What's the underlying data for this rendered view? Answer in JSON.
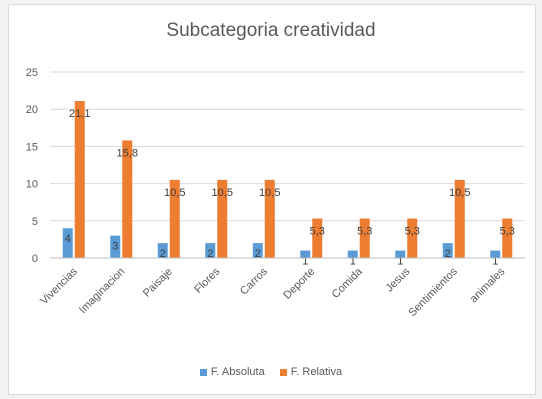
{
  "chart_data": {
    "type": "bar",
    "title": "Subcategoria creatividad",
    "categories": [
      "Vivencias",
      "Imaginacion",
      "Paisaje",
      "Flores",
      "Carros",
      "Deporte",
      "Comida",
      "Jesus",
      "Sentimientos",
      "animales"
    ],
    "series": [
      {
        "name": "F. Absoluta",
        "color": "#5b9bd5",
        "values": [
          4,
          3,
          2,
          2,
          2,
          1,
          1,
          1,
          2,
          1
        ],
        "labels": [
          "4",
          "3",
          "2",
          "2",
          "2",
          "1",
          "1",
          "1",
          "2",
          "1"
        ]
      },
      {
        "name": "F. Relativa",
        "color": "#ed7d31",
        "values": [
          21.1,
          15.8,
          10.5,
          10.5,
          10.5,
          5.3,
          5.3,
          5.3,
          10.5,
          5.3
        ],
        "labels": [
          "21,1",
          "15,8",
          "10,5",
          "10,5",
          "10,5",
          "5,3",
          "5,3",
          "5,3",
          "10,5",
          "5,3"
        ]
      }
    ],
    "yticks": [
      0,
      5,
      10,
      15,
      20,
      25
    ],
    "ylim": [
      0,
      25
    ],
    "grid": true,
    "legend": "bottom"
  }
}
